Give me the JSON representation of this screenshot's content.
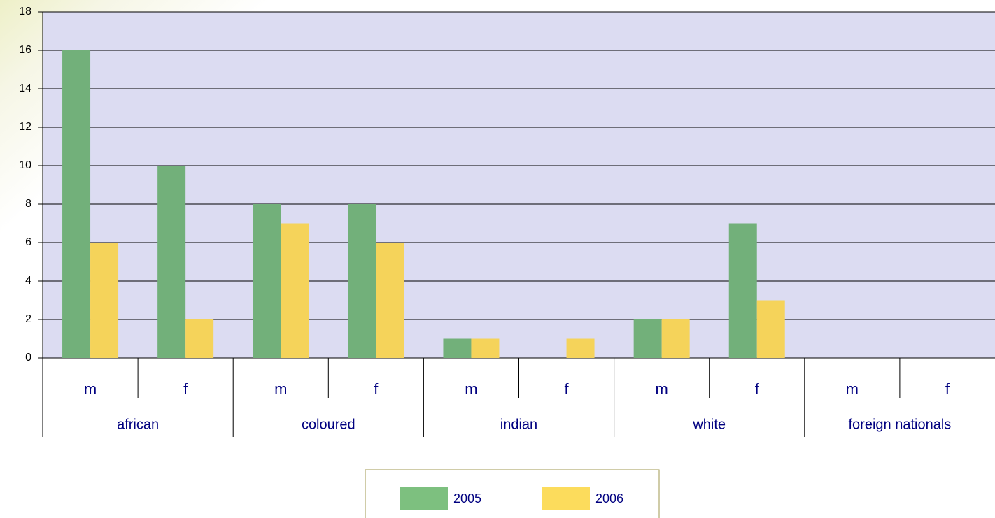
{
  "chart_data": {
    "type": "bar",
    "categories": [
      "m",
      "f",
      "m",
      "f",
      "m",
      "f",
      "m",
      "f",
      "m",
      "f"
    ],
    "groups": [
      "african",
      "coloured",
      "indian",
      "white",
      "foreign nationals"
    ],
    "series": [
      {
        "name": "2005",
        "color": "#72b07a",
        "values": [
          16,
          10,
          8,
          8,
          1,
          0,
          2,
          7,
          0,
          0
        ]
      },
      {
        "name": "2006",
        "color": "#f5d35a",
        "values": [
          6,
          2,
          7,
          6,
          1,
          1,
          2,
          3,
          0,
          0
        ]
      }
    ],
    "ylim": [
      0,
      18
    ],
    "yticks": [
      0,
      2,
      4,
      6,
      8,
      10,
      12,
      14,
      16,
      18
    ],
    "grid": true,
    "legend": "bottom"
  }
}
